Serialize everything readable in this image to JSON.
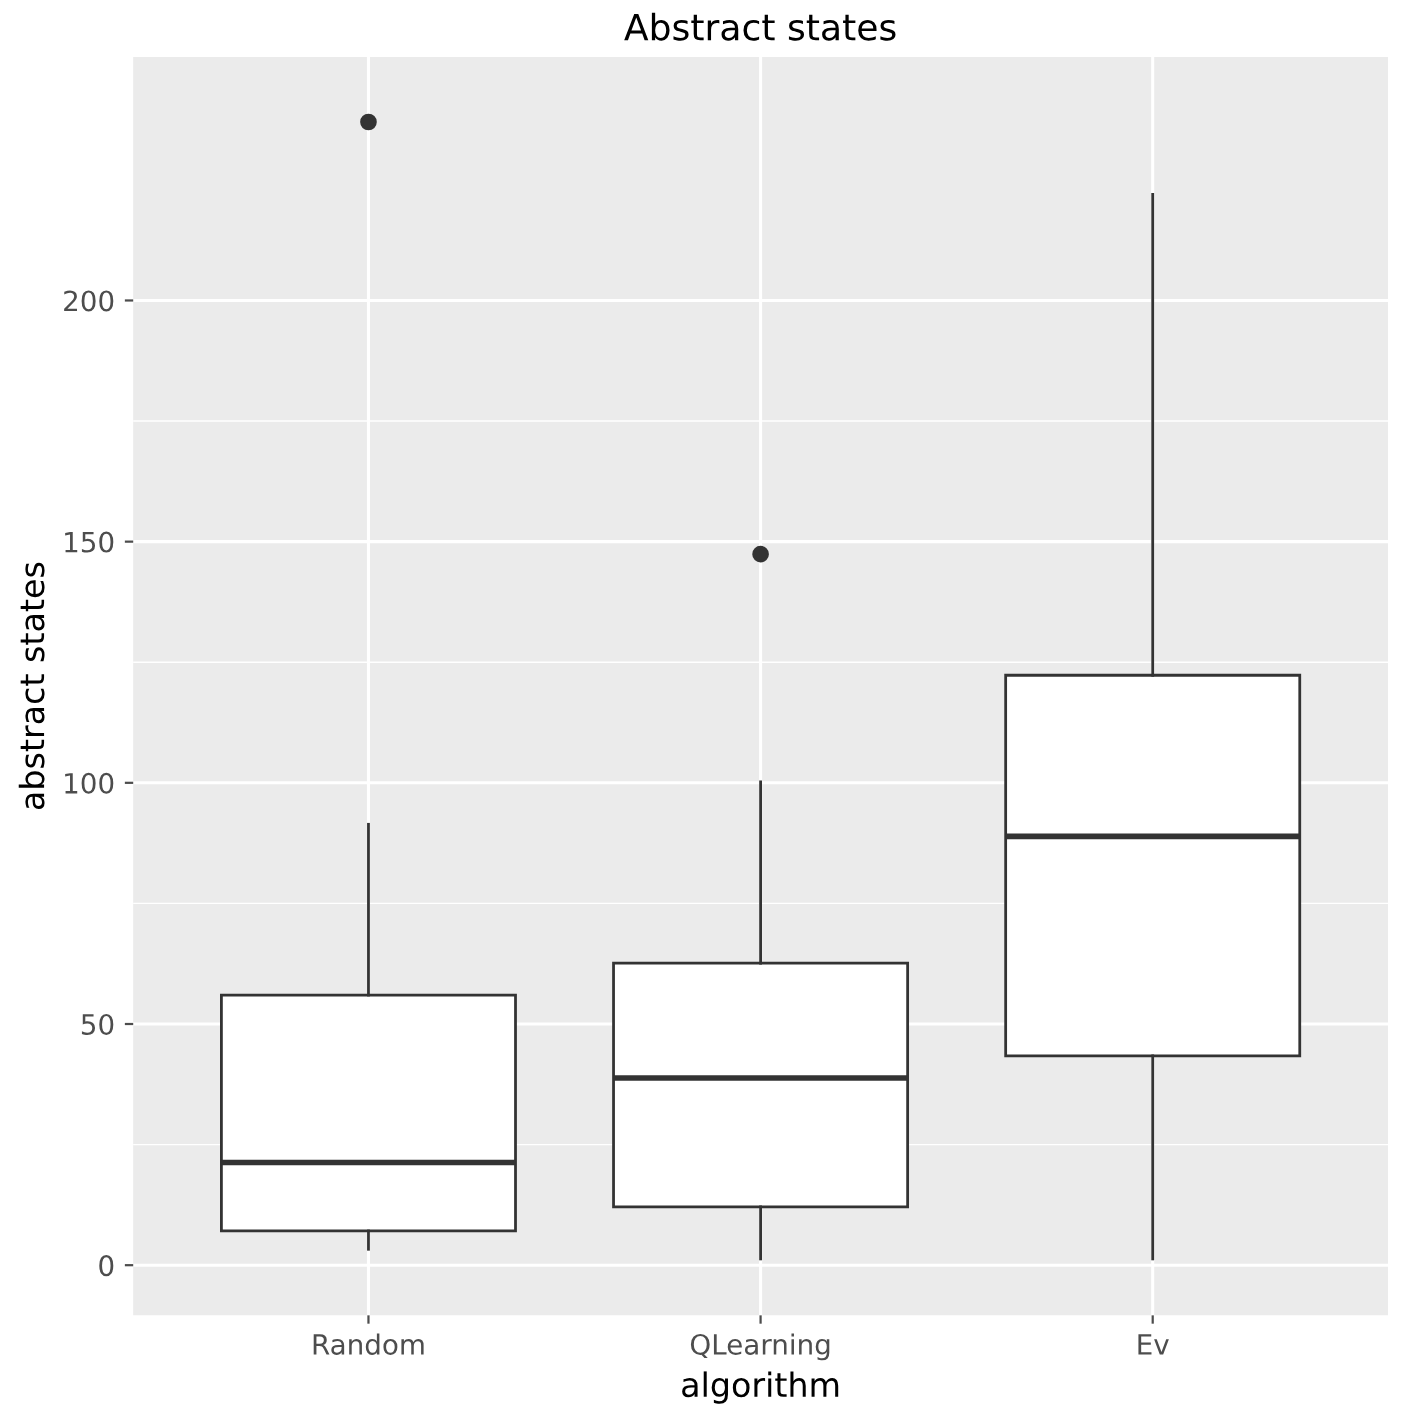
{
  "chart_data": {
    "type": "box",
    "title": "Abstract states",
    "xlabel": "algorithm",
    "ylabel": "abstract states",
    "categories": [
      "Random",
      "QLearning",
      "Ev"
    ],
    "boxes": [
      {
        "low": 3.3,
        "q1": 7.1,
        "median": 21.3,
        "q3": 56,
        "high": 91.4,
        "outliers": [
          237
        ]
      },
      {
        "low": 1.3,
        "q1": 12.1,
        "median": 38.8,
        "q3": 62.6,
        "high": 100.2,
        "outliers": [
          147.4
        ]
      },
      {
        "low": 1.3,
        "q1": 43.4,
        "median": 88.9,
        "q3": 122.3,
        "high": 222
      }
    ],
    "ylim": [
      -10.4,
      250.5
    ],
    "yticks": [
      0,
      50,
      100,
      150,
      200
    ],
    "grid": true
  }
}
